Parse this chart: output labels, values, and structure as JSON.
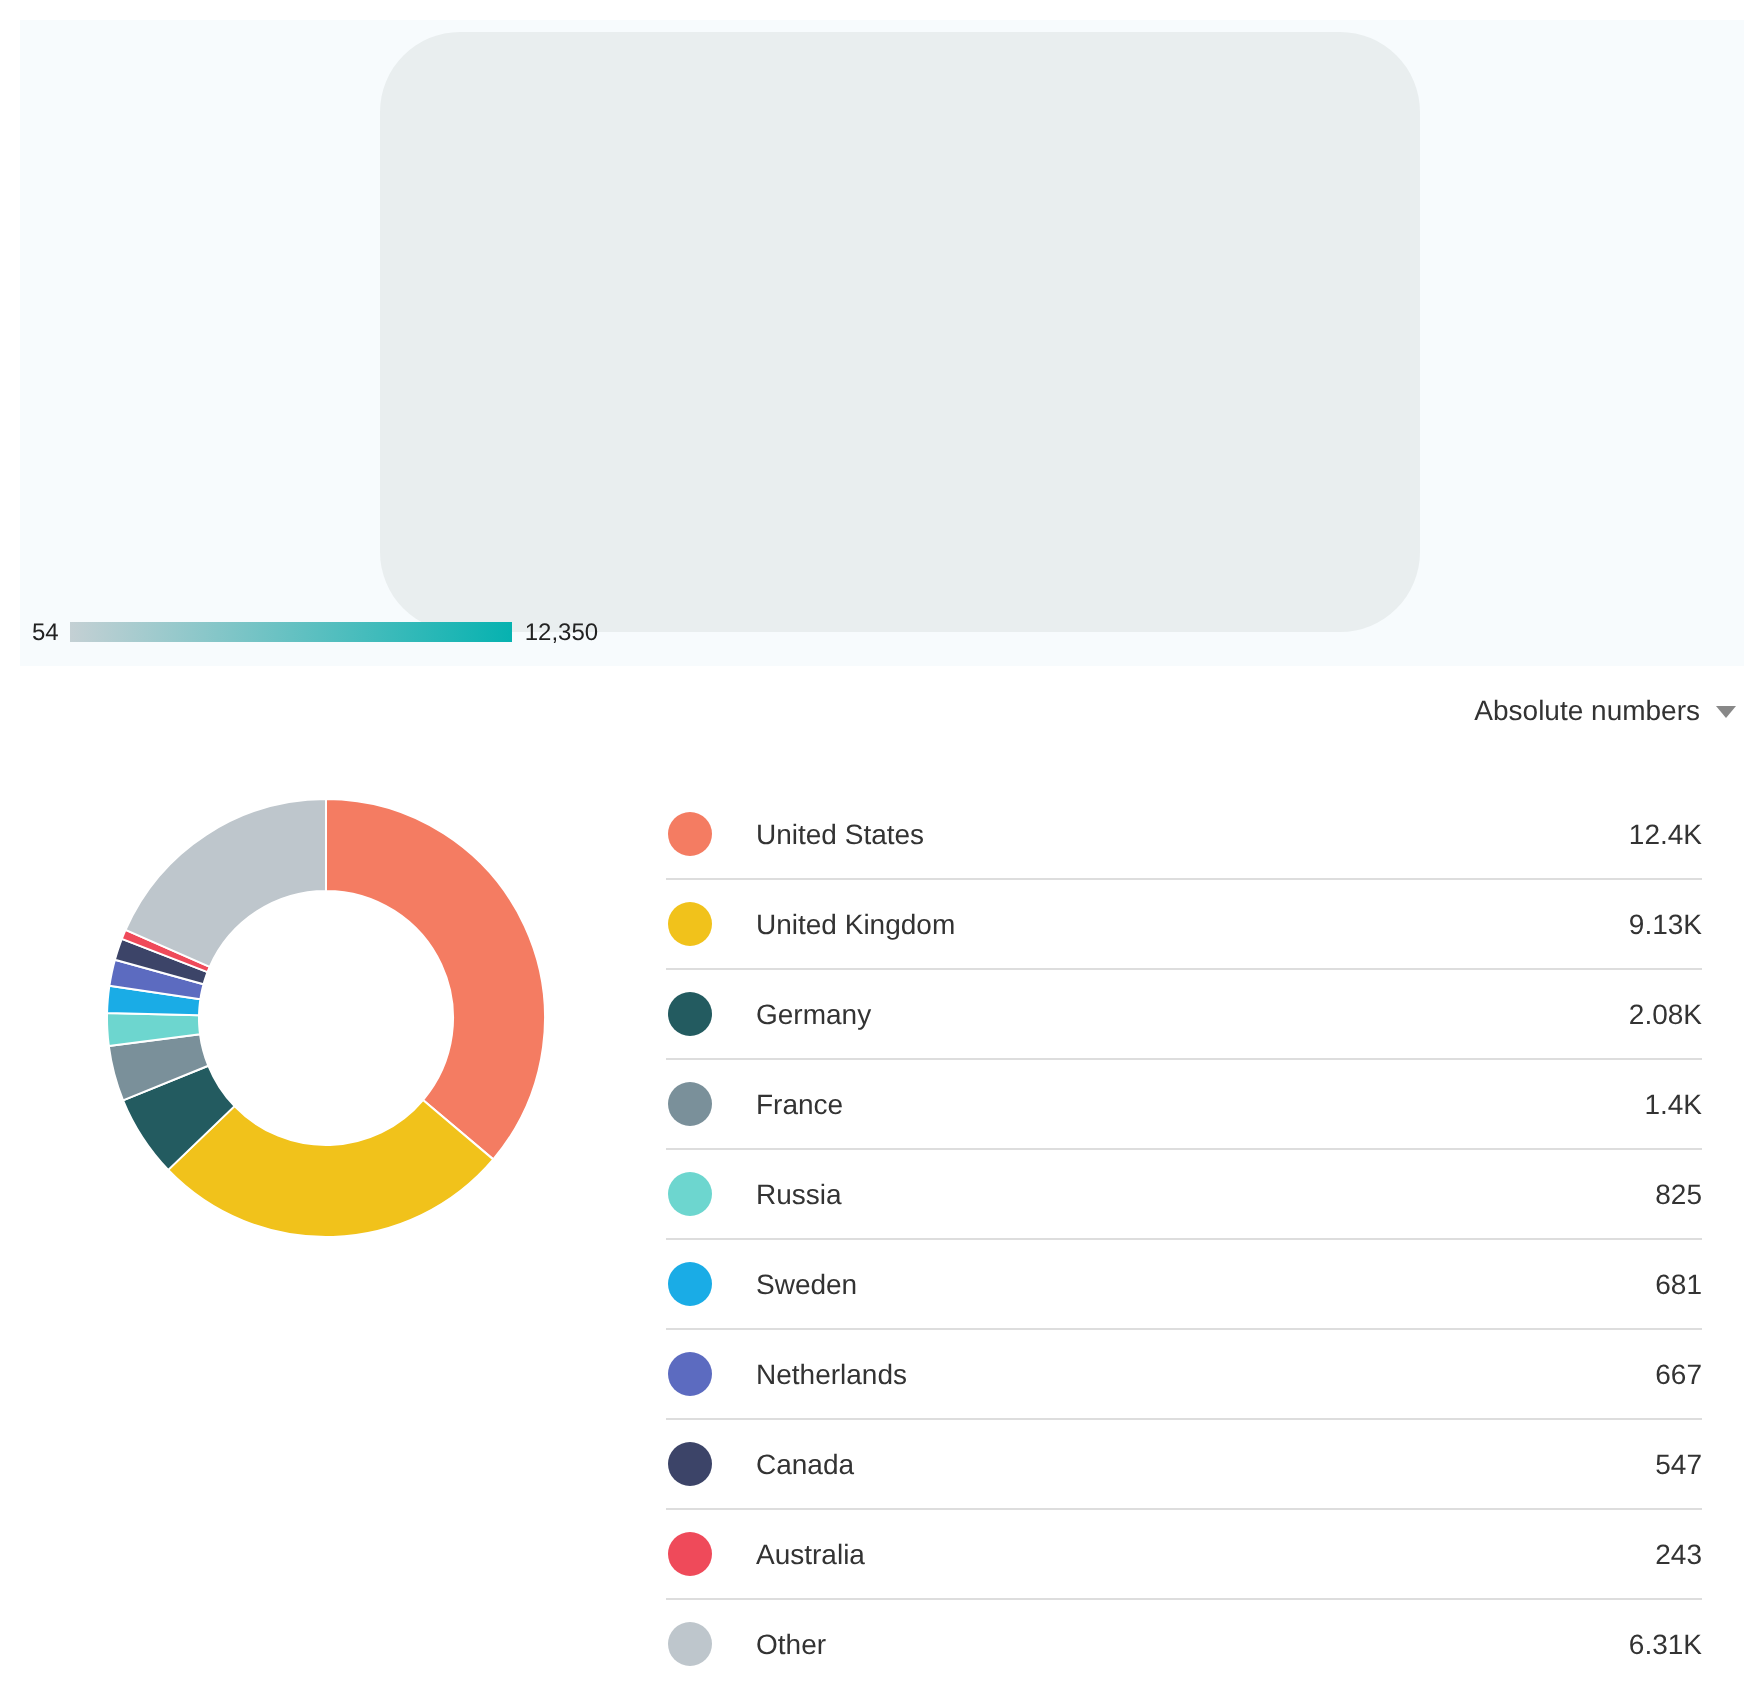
{
  "chart_data": [
    {
      "type": "other",
      "annotations": [
        "54",
        "12,350"
      ]
    },
    {
      "type": "donut",
      "annotations": [
        "Absolute numbers"
      ],
      "legend": "right",
      "categories": [
        "United States",
        "United Kingdom",
        "Germany",
        "France",
        "Russia",
        "Sweden",
        "Netherlands",
        "Canada",
        "Australia",
        "Other"
      ],
      "values": [
        12400,
        9130,
        2080,
        1400,
        825,
        681,
        667,
        547,
        243,
        6310
      ],
      "value_labels": [
        "12.4K",
        "9.13K",
        "2.08K",
        "1.4K",
        "825",
        "681",
        "667",
        "547",
        "243",
        "6.31K"
      ],
      "colors": [
        "#f47c62",
        "#f1c21b",
        "#235b60",
        "#7a909a",
        "#6dd6cf",
        "#1aace6",
        "#5c6bc0",
        "#3c4468",
        "#ef4a5a",
        "#bec6cc"
      ]
    }
  ]
}
